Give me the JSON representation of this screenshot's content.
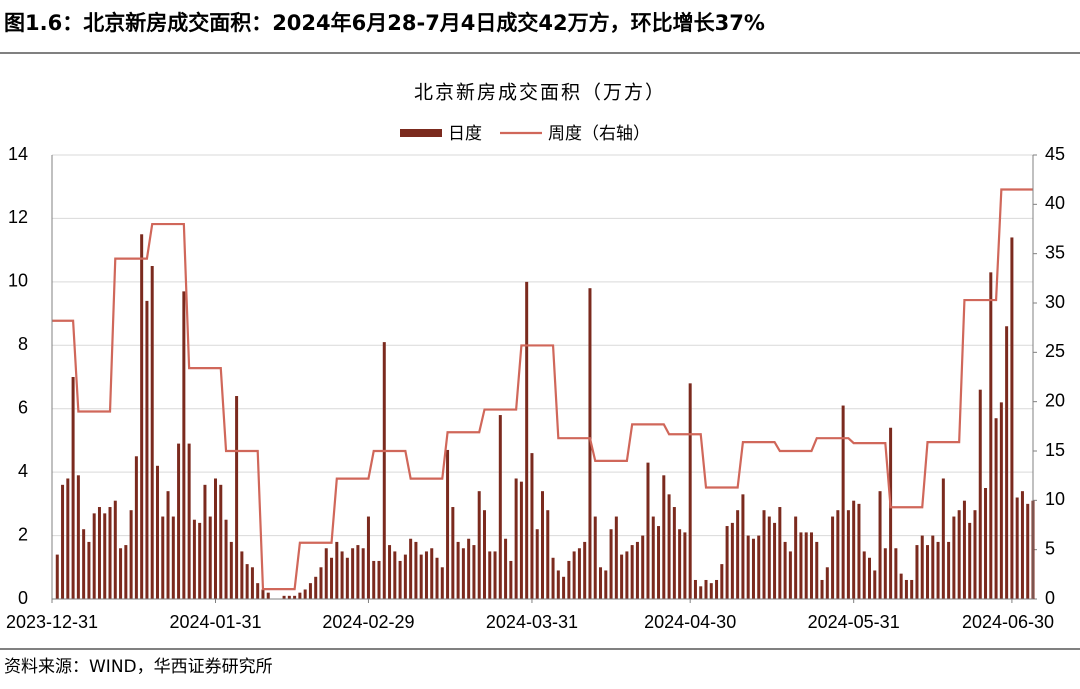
{
  "header": "图1.6：北京新房成交面积：2024年6月28-7月4日成交42万方，环比增长37%",
  "source": "资料来源：WIND，华西证券研究所",
  "chart_data": {
    "type": "bar",
    "title": "北京新房成交面积（万方）",
    "x": [
      "2023-12-31",
      "2024-01-01",
      "2024-01-02",
      "2024-01-03",
      "2024-01-04",
      "2024-01-05",
      "2024-01-06",
      "2024-01-07",
      "2024-01-08",
      "2024-01-09",
      "2024-01-10",
      "2024-01-11",
      "2024-01-12",
      "2024-01-13",
      "2024-01-14",
      "2024-01-15",
      "2024-01-16",
      "2024-01-17",
      "2024-01-18",
      "2024-01-19",
      "2024-01-20",
      "2024-01-21",
      "2024-01-22",
      "2024-01-23",
      "2024-01-24",
      "2024-01-25",
      "2024-01-26",
      "2024-01-27",
      "2024-01-28",
      "2024-01-29",
      "2024-01-30",
      "2024-01-31",
      "2024-02-01",
      "2024-02-02",
      "2024-02-03",
      "2024-02-04",
      "2024-02-05",
      "2024-02-06",
      "2024-02-07",
      "2024-02-08",
      "2024-02-09",
      "2024-02-10",
      "2024-02-11",
      "2024-02-12",
      "2024-02-13",
      "2024-02-14",
      "2024-02-15",
      "2024-02-16",
      "2024-02-17",
      "2024-02-18",
      "2024-02-19",
      "2024-02-20",
      "2024-02-21",
      "2024-02-22",
      "2024-02-23",
      "2024-02-24",
      "2024-02-25",
      "2024-02-26",
      "2024-02-27",
      "2024-02-28",
      "2024-02-29",
      "2024-03-01",
      "2024-03-02",
      "2024-03-03",
      "2024-03-04",
      "2024-03-05",
      "2024-03-06",
      "2024-03-07",
      "2024-03-08",
      "2024-03-09",
      "2024-03-10",
      "2024-03-11",
      "2024-03-12",
      "2024-03-13",
      "2024-03-14",
      "2024-03-15",
      "2024-03-16",
      "2024-03-17",
      "2024-03-18",
      "2024-03-19",
      "2024-03-20",
      "2024-03-21",
      "2024-03-22",
      "2024-03-23",
      "2024-03-24",
      "2024-03-25",
      "2024-03-26",
      "2024-03-27",
      "2024-03-28",
      "2024-03-29",
      "2024-03-30",
      "2024-03-31",
      "2024-04-01",
      "2024-04-02",
      "2024-04-03",
      "2024-04-04",
      "2024-04-05",
      "2024-04-06",
      "2024-04-07",
      "2024-04-08",
      "2024-04-09",
      "2024-04-10",
      "2024-04-11",
      "2024-04-12",
      "2024-04-13",
      "2024-04-14",
      "2024-04-15",
      "2024-04-16",
      "2024-04-17",
      "2024-04-18",
      "2024-04-19",
      "2024-04-20",
      "2024-04-21",
      "2024-04-22",
      "2024-04-23",
      "2024-04-24",
      "2024-04-25",
      "2024-04-26",
      "2024-04-27",
      "2024-04-28",
      "2024-04-29",
      "2024-04-30",
      "2024-05-01",
      "2024-05-02",
      "2024-05-03",
      "2024-05-04",
      "2024-05-05",
      "2024-05-06",
      "2024-05-07",
      "2024-05-08",
      "2024-05-09",
      "2024-05-10",
      "2024-05-11",
      "2024-05-12",
      "2024-05-13",
      "2024-05-14",
      "2024-05-15",
      "2024-05-16",
      "2024-05-17",
      "2024-05-18",
      "2024-05-19",
      "2024-05-20",
      "2024-05-21",
      "2024-05-22",
      "2024-05-23",
      "2024-05-24",
      "2024-05-25",
      "2024-05-26",
      "2024-05-27",
      "2024-05-28",
      "2024-05-29",
      "2024-05-30",
      "2024-05-31",
      "2024-06-01",
      "2024-06-02",
      "2024-06-03",
      "2024-06-04",
      "2024-06-05",
      "2024-06-06",
      "2024-06-07",
      "2024-06-08",
      "2024-06-09",
      "2024-06-10",
      "2024-06-11",
      "2024-06-12",
      "2024-06-13",
      "2024-06-14",
      "2024-06-15",
      "2024-06-16",
      "2024-06-17",
      "2024-06-18",
      "2024-06-19",
      "2024-06-20",
      "2024-06-21",
      "2024-06-22",
      "2024-06-23",
      "2024-06-24",
      "2024-06-25",
      "2024-06-26",
      "2024-06-27",
      "2024-06-28",
      "2024-06-29",
      "2024-06-30",
      "2024-07-01",
      "2024-07-02",
      "2024-07-03",
      "2024-07-04"
    ],
    "series": [
      {
        "name": "日度",
        "type": "bar",
        "color": "#7b2a1e",
        "values": [
          0,
          1.4,
          3.6,
          3.8,
          7.0,
          3.9,
          2.2,
          1.8,
          2.7,
          2.9,
          2.7,
          2.9,
          3.1,
          1.6,
          1.7,
          2.8,
          4.5,
          11.5,
          9.4,
          10.5,
          4.2,
          2.6,
          3.4,
          2.6,
          4.9,
          9.7,
          4.9,
          2.5,
          2.4,
          3.6,
          2.6,
          3.8,
          3.6,
          2.5,
          1.8,
          6.4,
          1.5,
          1.1,
          1.0,
          0.5,
          0.3,
          0.2,
          0,
          0,
          0.1,
          0.1,
          0.1,
          0.2,
          0.3,
          0.5,
          0.7,
          1.0,
          1.6,
          1.3,
          1.8,
          1.5,
          1.3,
          1.6,
          1.7,
          1.6,
          2.6,
          1.2,
          1.2,
          8.1,
          1.7,
          1.5,
          1.2,
          1.4,
          1.9,
          1.8,
          1.4,
          1.5,
          1.6,
          1.3,
          1.0,
          4.7,
          2.9,
          1.8,
          1.6,
          1.9,
          1.7,
          3.4,
          2.8,
          1.5,
          1.5,
          5.8,
          1.9,
          1.2,
          3.8,
          3.7,
          10.0,
          4.6,
          2.2,
          3.4,
          2.8,
          1.3,
          0.9,
          0.7,
          1.2,
          1.5,
          1.6,
          1.8,
          9.8,
          2.6,
          1.0,
          0.9,
          2.2,
          2.6,
          1.4,
          1.5,
          1.7,
          1.8,
          2.0,
          4.3,
          2.6,
          2.3,
          3.9,
          3.3,
          2.9,
          2.2,
          2.1,
          6.8,
          0.6,
          0.4,
          0.6,
          0.5,
          0.6,
          1.1,
          2.3,
          2.4,
          2.8,
          3.3,
          2.0,
          1.9,
          2.0,
          2.8,
          2.6,
          2.4,
          2.9,
          1.8,
          1.5,
          2.6,
          2.1,
          2.1,
          2.1,
          1.8,
          0.6,
          1.0,
          2.6,
          2.8,
          6.1,
          2.8,
          3.1,
          3.0,
          1.5,
          1.3,
          0.9,
          3.4,
          1.6,
          5.4,
          1.6,
          0.8,
          0.6,
          0.6,
          1.7,
          2.0,
          1.7,
          2.0,
          1.8,
          3.8,
          1.8,
          2.6,
          2.8,
          3.1,
          2.4,
          2.8,
          6.6,
          3.5,
          10.3,
          5.7,
          6.2,
          8.6,
          11.4,
          3.2,
          3.4,
          3.0,
          3.1
        ]
      },
      {
        "name": "周度（右轴）",
        "type": "line",
        "axis": "y2",
        "color": "#d0675a",
        "values": [
          28.2,
          28.2,
          28.2,
          28.2,
          28.2,
          19,
          19,
          19,
          19,
          19,
          19,
          19,
          34.5,
          34.5,
          34.5,
          34.5,
          34.5,
          34.5,
          34.5,
          38,
          38,
          38,
          38,
          38,
          38,
          38,
          23.4,
          23.4,
          23.4,
          23.4,
          23.4,
          23.4,
          23.4,
          15,
          15,
          15,
          15,
          15,
          15,
          15,
          1,
          1,
          1,
          1,
          1,
          1,
          1,
          5.7,
          5.7,
          5.7,
          5.7,
          5.7,
          5.7,
          5.7,
          12.2,
          12.2,
          12.2,
          12.2,
          12.2,
          12.2,
          12.2,
          15,
          15,
          15,
          15,
          15,
          15,
          15,
          12.2,
          12.2,
          12.2,
          12.2,
          12.2,
          12.2,
          12.2,
          16.9,
          16.9,
          16.9,
          16.9,
          16.9,
          16.9,
          16.9,
          19.2,
          19.2,
          19.2,
          19.2,
          19.2,
          19.2,
          19.2,
          25.7,
          25.7,
          25.7,
          25.7,
          25.7,
          25.7,
          25.7,
          16.3,
          16.3,
          16.3,
          16.3,
          16.3,
          16.3,
          16.3,
          14,
          14,
          14,
          14,
          14,
          14,
          14,
          17.7,
          17.7,
          17.7,
          17.7,
          17.7,
          17.7,
          17.7,
          16.7,
          16.7,
          16.7,
          16.7,
          16.7,
          16.7,
          16.7,
          11.3,
          11.3,
          11.3,
          11.3,
          11.3,
          11.3,
          11.3,
          15.9,
          15.9,
          15.9,
          15.9,
          15.9,
          15.9,
          15.9,
          15,
          15,
          15,
          15,
          15,
          15,
          15,
          16.3,
          16.3,
          16.3,
          16.3,
          16.3,
          16.3,
          16.3,
          15.8,
          15.8,
          15.8,
          15.8,
          15.8,
          15.8,
          15.8,
          9.3,
          9.3,
          9.3,
          9.3,
          9.3,
          9.3,
          9.3,
          15.9,
          15.9,
          15.9,
          15.9,
          15.9,
          15.9,
          15.9,
          30.3,
          30.3,
          30.3,
          30.3,
          30.3,
          30.3,
          30.3,
          41.5,
          41.5,
          41.5,
          41.5,
          41.5,
          41.5,
          41.5
        ]
      }
    ],
    "xlim": [
      "2023-12-31",
      "2024-07-04"
    ],
    "xticks": [
      "2023-12-31",
      "2024-01-31",
      "2024-02-29",
      "2024-03-31",
      "2024-04-30",
      "2024-05-31",
      "2024-06-30"
    ],
    "ylim": [
      0,
      14
    ],
    "yticks": [
      0,
      2,
      4,
      6,
      8,
      10,
      12,
      14
    ],
    "y2lim": [
      0,
      45
    ],
    "y2ticks": [
      0,
      5,
      10,
      15,
      20,
      25,
      30,
      35,
      40,
      45
    ],
    "grid": true
  }
}
